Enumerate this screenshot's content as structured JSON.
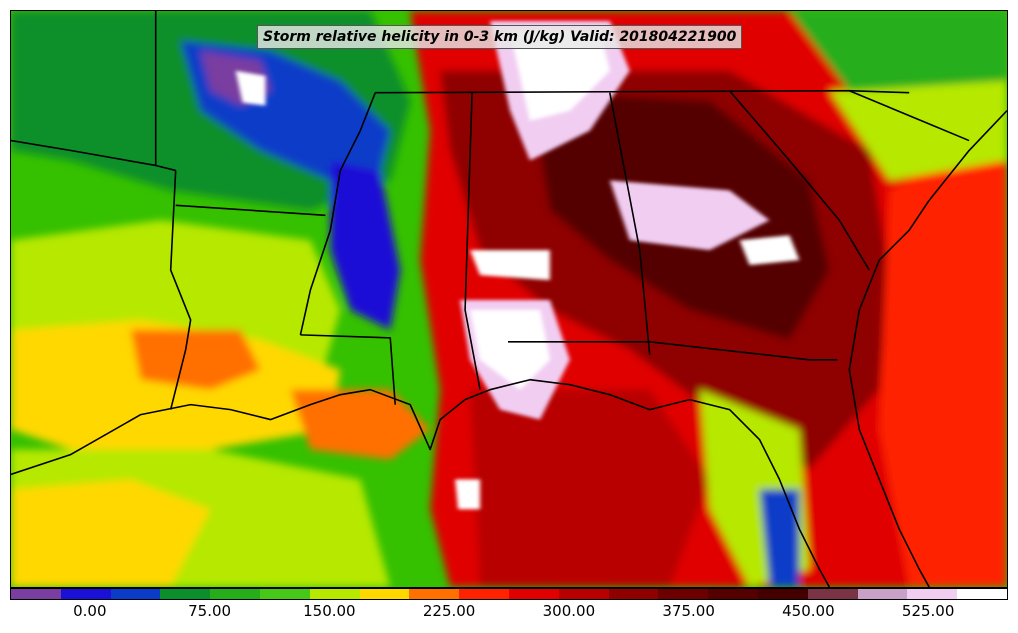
{
  "title": "Storm relative helicity in 0-3 km (J/kg) Valid: 201804221900",
  "colorbar": {
    "colors": [
      "#7a3ea0",
      "#1b10d6",
      "#0a3cc8",
      "#0a8f2c",
      "#26ae1a",
      "#47c818",
      "#b6e800",
      "#ffd800",
      "#ff7000",
      "#ff2200",
      "#e00000",
      "#b80000",
      "#8f0000",
      "#6c0000",
      "#540000",
      "#440000",
      "#7a3344",
      "#c9a0c8",
      "#f2cdf2",
      "#ffffff"
    ],
    "tick_labels": [
      "0.00",
      "75.00",
      "150.00",
      "225.00",
      "300.00",
      "375.00",
      "450.00",
      "525.00"
    ],
    "tick_values": [
      0,
      75,
      150,
      225,
      300,
      375,
      450,
      525
    ],
    "min": -50,
    "max": 575
  }
}
